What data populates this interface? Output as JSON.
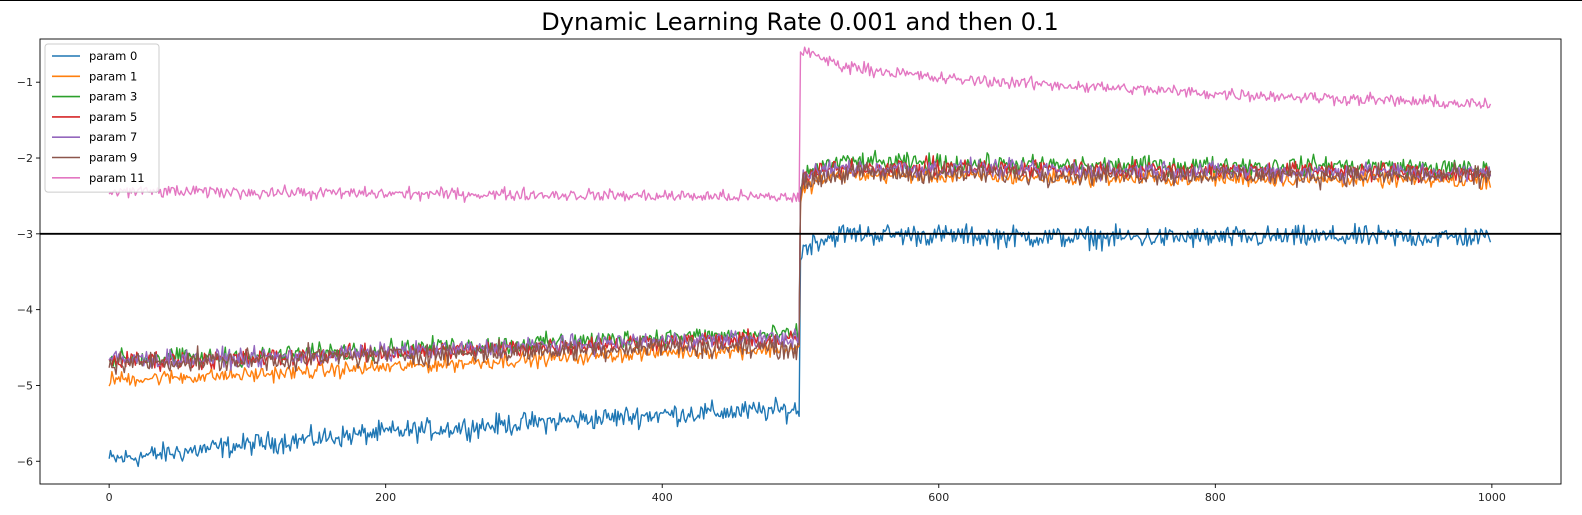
{
  "chart_data": {
    "type": "line",
    "title": "Dynamic Learning Rate 0.001 and then 0.1",
    "xlabel": "",
    "ylabel": "",
    "xlim": [
      -50,
      1050
    ],
    "ylim": [
      -6.3,
      -0.43
    ],
    "x_ticks": [
      0,
      200,
      400,
      600,
      800,
      1000
    ],
    "y_ticks": [
      -6,
      -5,
      -4,
      -3,
      -2,
      -1
    ],
    "grid": false,
    "legend_position": "upper left",
    "reference_line": {
      "y": -3,
      "color": "#000000"
    },
    "n_points": 1000,
    "switch_step": 500,
    "series": [
      {
        "name": "param 0",
        "color": "#1f77b4",
        "x": [
          0,
          100,
          200,
          300,
          400,
          499,
          500,
          502,
          510,
          530,
          600,
          700,
          800,
          900,
          999
        ],
        "y": [
          -5.98,
          -5.78,
          -5.62,
          -5.5,
          -5.38,
          -5.32,
          -3.35,
          -3.2,
          -3.1,
          -3.0,
          -3.02,
          -3.05,
          -3.05,
          -3.04,
          -3.05
        ],
        "noise": 0.07
      },
      {
        "name": "param 1",
        "color": "#ff7f0e",
        "x": [
          0,
          100,
          200,
          300,
          400,
          499,
          500,
          502,
          510,
          530,
          600,
          700,
          800,
          900,
          999
        ],
        "y": [
          -4.92,
          -4.86,
          -4.76,
          -4.66,
          -4.56,
          -4.52,
          -2.6,
          -2.42,
          -2.32,
          -2.22,
          -2.24,
          -2.26,
          -2.27,
          -2.28,
          -2.3
        ],
        "noise": 0.05
      },
      {
        "name": "param 3",
        "color": "#2ca02c",
        "x": [
          0,
          100,
          200,
          300,
          400,
          499,
          500,
          502,
          510,
          530,
          600,
          700,
          800,
          900,
          999
        ],
        "y": [
          -4.65,
          -4.62,
          -4.52,
          -4.45,
          -4.36,
          -4.33,
          -2.4,
          -2.25,
          -2.15,
          -2.05,
          -2.07,
          -2.1,
          -2.1,
          -2.1,
          -2.15
        ],
        "noise": 0.06
      },
      {
        "name": "param 5",
        "color": "#d62728",
        "x": [
          0,
          100,
          200,
          300,
          400,
          499,
          500,
          502,
          510,
          530,
          600,
          700,
          800,
          900,
          999
        ],
        "y": [
          -4.68,
          -4.65,
          -4.57,
          -4.5,
          -4.42,
          -4.4,
          -2.45,
          -2.28,
          -2.2,
          -2.12,
          -2.13,
          -2.15,
          -2.16,
          -2.17,
          -2.2
        ],
        "noise": 0.06
      },
      {
        "name": "param 7",
        "color": "#9467bd",
        "x": [
          0,
          100,
          200,
          300,
          400,
          499,
          500,
          502,
          510,
          530,
          600,
          700,
          800,
          900,
          999
        ],
        "y": [
          -4.66,
          -4.64,
          -4.56,
          -4.49,
          -4.41,
          -4.38,
          -2.44,
          -2.27,
          -2.18,
          -2.13,
          -2.14,
          -2.16,
          -2.17,
          -2.18,
          -2.2
        ],
        "noise": 0.06
      },
      {
        "name": "param 9",
        "color": "#8c564b",
        "x": [
          0,
          100,
          200,
          300,
          400,
          499,
          500,
          502,
          510,
          530,
          600,
          700,
          800,
          900,
          999
        ],
        "y": [
          -4.7,
          -4.67,
          -4.6,
          -4.55,
          -4.48,
          -4.5,
          -2.55,
          -2.36,
          -2.27,
          -2.2,
          -2.2,
          -2.21,
          -2.22,
          -2.23,
          -2.25
        ],
        "noise": 0.07
      },
      {
        "name": "param 11",
        "color": "#e377c2",
        "x": [
          0,
          100,
          200,
          300,
          400,
          499,
          500,
          502,
          510,
          530,
          600,
          700,
          800,
          900,
          999
        ],
        "y": [
          -2.44,
          -2.45,
          -2.47,
          -2.48,
          -2.5,
          -2.52,
          -0.6,
          -0.58,
          -0.65,
          -0.78,
          -0.95,
          -1.05,
          -1.15,
          -1.22,
          -1.3
        ],
        "noise": 0.04
      }
    ]
  }
}
